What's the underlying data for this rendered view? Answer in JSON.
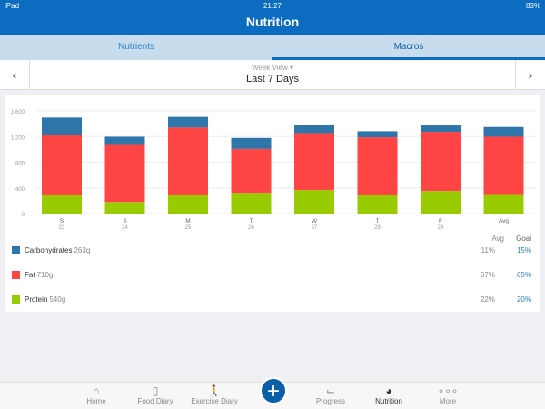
{
  "status": {
    "device": "iPad",
    "time": "21:27",
    "battery": "83%"
  },
  "header": {
    "title": "Nutrition"
  },
  "segments": [
    {
      "label": "Nutrients"
    },
    {
      "label": "Macros"
    }
  ],
  "week": {
    "view": "Week View",
    "range": "Last 7 Days",
    "prev": "‹",
    "next": "›"
  },
  "chart_data": {
    "type": "bar",
    "stacked": true,
    "ylim": [
      0,
      1600
    ],
    "yticks": [
      "0",
      "400",
      "800",
      "1,200",
      "1,600"
    ],
    "categories": [
      {
        "day": "S",
        "date": "23"
      },
      {
        "day": "S",
        "date": "24"
      },
      {
        "day": "M",
        "date": "25"
      },
      {
        "day": "T",
        "date": "26"
      },
      {
        "day": "W",
        "date": "27"
      },
      {
        "day": "T",
        "date": "28"
      },
      {
        "day": "F",
        "date": "29"
      },
      {
        "day": "Avg",
        "date": ""
      }
    ],
    "series": [
      {
        "name": "Protein",
        "color": "#99cc00",
        "values": [
          295,
          180,
          285,
          323,
          366,
          295,
          352,
          304
        ]
      },
      {
        "name": "Fat",
        "color": "#ff4444",
        "values": [
          935,
          903,
          1055,
          684,
          888,
          893,
          921,
          893
        ]
      },
      {
        "name": "Carbohydrates",
        "color": "#2e75aa",
        "values": [
          266,
          114,
          166,
          171,
          133,
          95,
          100,
          152
        ]
      }
    ]
  },
  "legend": {
    "avg_header": "Avg",
    "goal_header": "Goal",
    "items": [
      {
        "name": "Carbohydrates",
        "grams": "263g",
        "avg": "11%",
        "goal": "15%",
        "color": "#2e75aa"
      },
      {
        "name": "Fat",
        "grams": "710g",
        "avg": "67%",
        "goal": "65%",
        "color": "#ff4444"
      },
      {
        "name": "Protein",
        "grams": "540g",
        "avg": "22%",
        "goal": "20%",
        "color": "#99cc00"
      }
    ]
  },
  "tabbar": [
    {
      "label": "Home",
      "icon": "⌂"
    },
    {
      "label": "Food Diary",
      "icon": "▯"
    },
    {
      "label": "Exercise Diary",
      "icon": "🚶"
    },
    {
      "label": "Progress",
      "icon": "⌙"
    },
    {
      "label": "Nutrition",
      "icon": "◕"
    },
    {
      "label": "More",
      "icon": "∘∘∘"
    }
  ],
  "add_button": "+"
}
